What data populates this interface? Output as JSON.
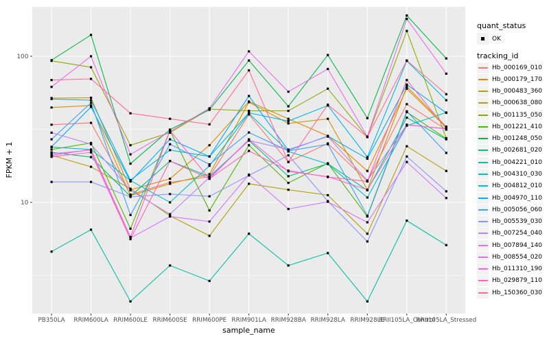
{
  "figure": {
    "background": "#FFFFFF",
    "panel_background": "#EBEBEB",
    "grid_color": "#FFFFFF",
    "tick_color": "#333333",
    "tick_label_color": "#4D4D4D"
  },
  "axes": {
    "x": {
      "title": "sample_name"
    },
    "y": {
      "title": "FPKM + 1",
      "tick_labels": [
        "100",
        "10"
      ],
      "tick_values": [
        100,
        10
      ],
      "minor_values": [
        31.62,
        3.162
      ],
      "scale": "log10"
    }
  },
  "legend": {
    "quant_status_title": "quant_status",
    "quant_status_ok_label": "OK",
    "quant_marker": "black-square-point",
    "tracking_id_title": "tracking_id"
  },
  "chart_data": {
    "type": "line",
    "title": "",
    "xlabel": "sample_name",
    "ylabel": "FPKM + 1",
    "y_scale": "log10",
    "y_ticks": [
      100,
      10
    ],
    "y_minor_ticks": [
      31.62,
      3.162
    ],
    "ylim": [
      1.74,
      218
    ],
    "grid": true,
    "legend_position": "right",
    "point_marker": "black-square",
    "x_categories": [
      "PB350LA",
      "RRIM600LA",
      "RRIM600LE",
      "RRIM600SE",
      "RRIM600PE",
      "RRIM901LA",
      "RRIM928BA",
      "RRIM928LA",
      "RRIM928LE",
      "RRII105LA_Control",
      "RRII105LA_Stressed"
    ],
    "quant_status": "OK",
    "series": [
      {
        "name": "Hb_000169_010",
        "color": "#F8766D",
        "values": [
          34,
          35,
          11.3,
          13.7,
          15,
          40,
          18.9,
          25.3,
          14,
          47,
          31.5
        ]
      },
      {
        "name": "Hb_000179_170",
        "color": "#E58700",
        "values": [
          51.7,
          52,
          12.2,
          14.5,
          24.6,
          49,
          37.3,
          28.5,
          16.4,
          60,
          32.5
        ]
      },
      {
        "name": "Hb_000483_360",
        "color": "#CF9400",
        "values": [
          44.6,
          46,
          11.1,
          13.4,
          15.6,
          48.5,
          34.7,
          37.3,
          12.2,
          62,
          33
        ]
      },
      {
        "name": "Hb_000638_080",
        "color": "#B2A100",
        "values": [
          21,
          17.5,
          12.4,
          8.1,
          5.9,
          13.4,
          12.2,
          11.2,
          6.1,
          24.2,
          16.4
        ]
      },
      {
        "name": "Hb_001135_050",
        "color": "#8CAB00",
        "values": [
          93,
          84,
          24.6,
          30,
          43.5,
          42.3,
          42.3,
          60,
          28,
          149,
          27.5
        ]
      },
      {
        "name": "Hb_001221_410",
        "color": "#51B400",
        "values": [
          23,
          25.5,
          6.6,
          31,
          8.8,
          24.6,
          13.6,
          18.5,
          8,
          41.5,
          27.3
        ]
      },
      {
        "name": "Hb_001248_050",
        "color": "#00BB44",
        "values": [
          94,
          140,
          18.4,
          31.5,
          43,
          93.5,
          45.4,
          102,
          37.7,
          190,
          96.6
        ]
      },
      {
        "name": "Hb_002681_020",
        "color": "#00BF7A",
        "values": [
          22,
          20.4,
          11,
          19.2,
          15,
          26.5,
          15.1,
          18.4,
          12.1,
          38,
          27
        ]
      },
      {
        "name": "Hb_004221_010",
        "color": "#00C1A2",
        "values": [
          4.6,
          6.5,
          2.1,
          3.7,
          2.9,
          6.1,
          3.7,
          4.5,
          2.1,
          7.5,
          5.1
        ]
      },
      {
        "name": "Hb_004310_030",
        "color": "#00BFC4",
        "values": [
          23.9,
          23,
          14.1,
          10,
          17.8,
          40.7,
          22.3,
          18.3,
          10.8,
          33.5,
          41.2
        ]
      },
      {
        "name": "Hb_004812_010",
        "color": "#00B8E1",
        "values": [
          51,
          50,
          14.2,
          22.8,
          20.6,
          41,
          36,
          46,
          20.4,
          93,
          50
        ]
      },
      {
        "name": "Hb_004970_110",
        "color": "#00ABFD",
        "values": [
          24,
          45,
          13.9,
          27,
          20.6,
          53.5,
          22.7,
          28.4,
          19.9,
          64,
          41
        ]
      },
      {
        "name": "Hb_005056_060",
        "color": "#35A2FF",
        "values": [
          27,
          48,
          8.2,
          25,
          18.2,
          30.1,
          22.5,
          25,
          8.1,
          42,
          21.8
        ]
      },
      {
        "name": "Hb_005539_030",
        "color": "#8B93FF",
        "values": [
          13.8,
          13.8,
          10.9,
          11.4,
          11,
          15.3,
          21,
          10.2,
          5.4,
          20.6,
          11.9
        ]
      },
      {
        "name": "Hb_007254_040",
        "color": "#B983FF",
        "values": [
          30,
          25,
          12.1,
          8.3,
          14.8,
          26.5,
          23,
          28.2,
          14.1,
          34,
          31.8
        ]
      },
      {
        "name": "Hb_007894_140",
        "color": "#D575FF",
        "values": [
          21.5,
          22.8,
          5.7,
          8,
          7.4,
          15.5,
          9,
          10.1,
          7.3,
          18.9,
          10.7
        ]
      },
      {
        "name": "Hb_008554_020",
        "color": "#EB69F0",
        "values": [
          61.7,
          100,
          21.3,
          30.5,
          44,
          108,
          57.2,
          81.9,
          28.2,
          180,
          76
        ]
      },
      {
        "name": "Hb_011310_190",
        "color": "#F863DC",
        "values": [
          21,
          23,
          5.8,
          31,
          14.5,
          27,
          16.3,
          15,
          12.2,
          33.8,
          32
        ]
      },
      {
        "name": "Hb_029879_110",
        "color": "#FF62BC",
        "values": [
          20.5,
          22,
          5.6,
          19.2,
          14.5,
          22.5,
          16.5,
          14.9,
          13.9,
          68.7,
          32
        ]
      },
      {
        "name": "Hb_150360_030",
        "color": "#FF6A98",
        "values": [
          68.7,
          70,
          40.7,
          37.3,
          34.2,
          80,
          18.9,
          46.6,
          28,
          93.5,
          55
        ]
      }
    ]
  }
}
